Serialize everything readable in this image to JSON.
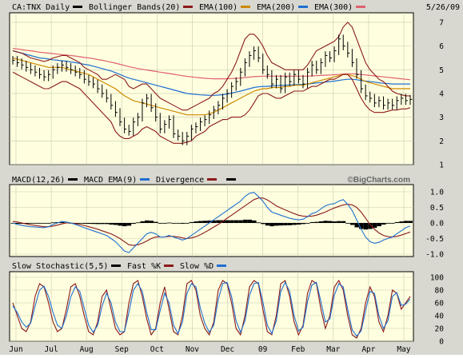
{
  "chart_data": {
    "type": "line",
    "date": "5/26/09",
    "watermark": "©BigCharts.com",
    "months": [
      "Jun",
      "Jul",
      "Aug",
      "Sep",
      "Oct",
      "Nov",
      "Dec",
      "09",
      "Feb",
      "Mar",
      "Apr",
      "May"
    ],
    "price_panel": {
      "legend": [
        {
          "label": "CA:TNX Daily",
          "color": "#000000"
        },
        {
          "label": "Bollinger Bands(20)",
          "color": "#8b1a1a"
        },
        {
          "label": "EMA(100)",
          "color": "#cc8800"
        },
        {
          "label": "EMA(200)",
          "color": "#1f6fd0"
        },
        {
          "label": "EMA(300)",
          "color": "#e06070"
        }
      ],
      "ylim": [
        1,
        7
      ],
      "yticks": [
        1,
        2,
        3,
        4,
        5,
        6,
        7
      ],
      "close": [
        5.4,
        5.3,
        5.2,
        5.1,
        5.0,
        4.9,
        4.8,
        4.7,
        4.8,
        5.0,
        5.1,
        5.2,
        5.1,
        5.0,
        4.9,
        4.8,
        4.6,
        4.5,
        4.4,
        4.2,
        4.0,
        3.8,
        3.5,
        3.2,
        2.8,
        2.5,
        2.4,
        2.8,
        3.0,
        3.6,
        3.8,
        3.4,
        3.0,
        2.5,
        2.7,
        2.9,
        2.3,
        2.2,
        2.0,
        2.2,
        2.5,
        2.6,
        2.8,
        2.9,
        3.1,
        3.3,
        3.5,
        3.8,
        4.0,
        4.3,
        4.5,
        4.9,
        5.3,
        5.6,
        5.8,
        5.5,
        5.0,
        4.8,
        4.4,
        4.6,
        4.2,
        4.7,
        4.5,
        4.8,
        4.6,
        4.4,
        4.9,
        5.2,
        5.0,
        5.3,
        5.6,
        5.5,
        5.8,
        6.3,
        6.0,
        5.7,
        5.3,
        4.8,
        4.2,
        3.9,
        3.8,
        3.6,
        3.7,
        3.5,
        3.6,
        3.5,
        3.7,
        3.8,
        3.7,
        3.75
      ],
      "bb_upper": [
        5.8,
        5.75,
        5.7,
        5.6,
        5.5,
        5.45,
        5.4,
        5.35,
        5.4,
        5.5,
        5.55,
        5.6,
        5.6,
        5.5,
        5.4,
        5.3,
        5.1,
        5.0,
        4.9,
        4.8,
        4.6,
        4.6,
        4.7,
        4.8,
        4.7,
        4.6,
        4.3,
        4.2,
        4.3,
        4.4,
        4.4,
        4.2,
        4.0,
        3.8,
        3.7,
        3.6,
        3.5,
        3.4,
        3.3,
        3.3,
        3.4,
        3.5,
        3.6,
        3.7,
        3.8,
        4.0,
        4.1,
        4.3,
        4.6,
        4.9,
        5.3,
        5.8,
        6.3,
        6.5,
        6.5,
        6.3,
        6.0,
        5.6,
        5.3,
        5.2,
        5.1,
        5.0,
        5.0,
        5.0,
        5.0,
        5.0,
        5.2,
        5.5,
        5.8,
        5.9,
        6.0,
        6.1,
        6.2,
        6.4,
        6.8,
        7.0,
        6.8,
        6.3,
        5.8,
        5.3,
        5.0,
        4.8,
        4.6,
        4.5,
        4.3,
        4.1,
        4.0,
        3.95,
        3.9,
        3.9
      ],
      "bb_lower": [
        4.9,
        4.8,
        4.7,
        4.6,
        4.5,
        4.4,
        4.3,
        4.2,
        4.2,
        4.3,
        4.4,
        4.5,
        4.5,
        4.4,
        4.3,
        4.2,
        4.0,
        3.8,
        3.6,
        3.4,
        3.2,
        3.0,
        2.8,
        2.4,
        2.2,
        2.1,
        2.1,
        2.2,
        2.3,
        2.5,
        2.6,
        2.5,
        2.4,
        2.2,
        2.1,
        2.0,
        1.9,
        1.9,
        1.9,
        1.95,
        2.0,
        2.2,
        2.3,
        2.4,
        2.6,
        2.7,
        2.8,
        2.9,
        2.9,
        3.0,
        3.0,
        3.0,
        3.1,
        3.3,
        3.6,
        3.9,
        4.0,
        4.0,
        3.9,
        3.8,
        3.8,
        3.9,
        4.0,
        4.1,
        4.1,
        4.1,
        4.2,
        4.3,
        4.3,
        4.4,
        4.5,
        4.6,
        4.6,
        4.7,
        4.8,
        4.8,
        4.6,
        4.2,
        3.8,
        3.5,
        3.3,
        3.2,
        3.2,
        3.2,
        3.25,
        3.3,
        3.3,
        3.35,
        3.35,
        3.4
      ],
      "ema100": [
        5.5,
        5.45,
        5.4,
        5.35,
        5.3,
        5.25,
        5.2,
        5.15,
        5.1,
        5.1,
        5.1,
        5.1,
        5.05,
        5.0,
        4.95,
        4.9,
        4.85,
        4.8,
        4.7,
        4.6,
        4.5,
        4.4,
        4.3,
        4.2,
        4.05,
        3.9,
        3.8,
        3.7,
        3.65,
        3.6,
        3.55,
        3.5,
        3.45,
        3.4,
        3.35,
        3.3,
        3.25,
        3.2,
        3.15,
        3.1,
        3.1,
        3.1,
        3.1,
        3.1,
        3.15,
        3.2,
        3.3,
        3.4,
        3.5,
        3.6,
        3.7,
        3.8,
        3.9,
        4.0,
        4.1,
        4.15,
        4.2,
        4.2,
        4.25,
        4.25,
        4.25,
        4.3,
        4.3,
        4.35,
        4.35,
        4.35,
        4.4,
        4.45,
        4.5,
        4.55,
        4.6,
        4.65,
        4.7,
        4.75,
        4.8,
        4.8,
        4.75,
        4.7,
        4.6,
        4.5,
        4.45,
        4.4,
        4.35,
        4.3,
        4.25,
        4.2,
        4.2,
        4.2,
        4.2,
        4.2
      ],
      "ema200": [
        5.8,
        5.75,
        5.7,
        5.65,
        5.6,
        5.55,
        5.5,
        5.48,
        5.45,
        5.42,
        5.4,
        5.38,
        5.36,
        5.33,
        5.3,
        5.27,
        5.23,
        5.2,
        5.15,
        5.1,
        5.05,
        5.0,
        4.95,
        4.88,
        4.8,
        4.72,
        4.65,
        4.6,
        4.55,
        4.5,
        4.45,
        4.4,
        4.35,
        4.3,
        4.25,
        4.2,
        4.15,
        4.1,
        4.05,
        4.0,
        3.98,
        3.96,
        3.94,
        3.93,
        3.92,
        3.92,
        3.93,
        3.95,
        3.98,
        4.02,
        4.06,
        4.1,
        4.15,
        4.2,
        4.25,
        4.28,
        4.3,
        4.3,
        4.32,
        4.33,
        4.34,
        4.35,
        4.36,
        4.37,
        4.38,
        4.38,
        4.4,
        4.42,
        4.44,
        4.46,
        4.48,
        4.5,
        4.52,
        4.55,
        4.58,
        4.6,
        4.6,
        4.58,
        4.55,
        4.52,
        4.5,
        4.48,
        4.45,
        4.43,
        4.42,
        4.4,
        4.4,
        4.4,
        4.4,
        4.4
      ],
      "ema300": [
        5.9,
        5.88,
        5.85,
        5.82,
        5.8,
        5.77,
        5.74,
        5.72,
        5.7,
        5.68,
        5.66,
        5.64,
        5.62,
        5.6,
        5.58,
        5.55,
        5.52,
        5.5,
        5.47,
        5.43,
        5.4,
        5.36,
        5.32,
        5.28,
        5.23,
        5.18,
        5.13,
        5.09,
        5.05,
        5.02,
        4.99,
        4.96,
        4.93,
        4.9,
        4.87,
        4.84,
        4.81,
        4.78,
        4.75,
        4.72,
        4.7,
        4.68,
        4.66,
        4.64,
        4.63,
        4.62,
        4.62,
        4.62,
        4.62,
        4.63,
        4.64,
        4.65,
        4.67,
        4.69,
        4.71,
        4.72,
        4.73,
        4.73,
        4.73,
        4.73,
        4.73,
        4.73,
        4.73,
        4.73,
        4.73,
        4.73,
        4.73,
        4.74,
        4.75,
        4.76,
        4.77,
        4.78,
        4.79,
        4.8,
        4.82,
        4.83,
        4.83,
        4.82,
        4.8,
        4.78,
        4.76,
        4.74,
        4.72,
        4.7,
        4.68,
        4.66,
        4.64,
        4.62,
        4.6,
        4.58
      ]
    },
    "macd_panel": {
      "legend": [
        {
          "label": "MACD(12,26)",
          "color": "#000000"
        },
        {
          "label": "MACD EMA(9)",
          "color": "#1f6fd0"
        },
        {
          "label": "Divergence",
          "color": "#8b1a1a"
        },
        {
          "label": "",
          "color": "#000000"
        }
      ],
      "ylim": [
        -1.0,
        1.0
      ],
      "yticks": [
        "1.0",
        "0.5",
        "0.0",
        "-0.5",
        "-1.0"
      ],
      "macd": [
        0.0,
        -0.05,
        -0.08,
        -0.1,
        -0.12,
        -0.13,
        -0.14,
        -0.15,
        -0.12,
        -0.05,
        0.0,
        0.05,
        0.03,
        0.0,
        -0.05,
        -0.1,
        -0.15,
        -0.2,
        -0.25,
        -0.3,
        -0.35,
        -0.4,
        -0.5,
        -0.6,
        -0.75,
        -0.9,
        -0.95,
        -0.8,
        -0.65,
        -0.5,
        -0.35,
        -0.3,
        -0.35,
        -0.45,
        -0.45,
        -0.4,
        -0.45,
        -0.5,
        -0.55,
        -0.5,
        -0.4,
        -0.3,
        -0.2,
        -0.1,
        0.0,
        0.1,
        0.2,
        0.3,
        0.4,
        0.5,
        0.6,
        0.7,
        0.85,
        0.95,
        0.98,
        0.85,
        0.7,
        0.5,
        0.35,
        0.3,
        0.25,
        0.2,
        0.15,
        0.12,
        0.1,
        0.12,
        0.2,
        0.3,
        0.35,
        0.45,
        0.55,
        0.6,
        0.62,
        0.7,
        0.75,
        0.6,
        0.4,
        0.1,
        -0.2,
        -0.45,
        -0.6,
        -0.65,
        -0.62,
        -0.55,
        -0.5,
        -0.45,
        -0.35,
        -0.25,
        -0.15,
        -0.1
      ],
      "signal": [
        0.05,
        0.03,
        0.0,
        -0.03,
        -0.06,
        -0.08,
        -0.1,
        -0.12,
        -0.12,
        -0.1,
        -0.07,
        -0.03,
        0.0,
        0.0,
        -0.02,
        -0.05,
        -0.08,
        -0.12,
        -0.16,
        -0.2,
        -0.25,
        -0.3,
        -0.35,
        -0.42,
        -0.5,
        -0.6,
        -0.7,
        -0.72,
        -0.7,
        -0.65,
        -0.58,
        -0.5,
        -0.45,
        -0.45,
        -0.45,
        -0.43,
        -0.43,
        -0.45,
        -0.48,
        -0.5,
        -0.48,
        -0.44,
        -0.38,
        -0.3,
        -0.22,
        -0.13,
        -0.05,
        0.05,
        0.15,
        0.25,
        0.35,
        0.45,
        0.55,
        0.65,
        0.75,
        0.8,
        0.8,
        0.74,
        0.65,
        0.55,
        0.48,
        0.42,
        0.36,
        0.3,
        0.25,
        0.22,
        0.21,
        0.22,
        0.25,
        0.3,
        0.35,
        0.42,
        0.48,
        0.53,
        0.58,
        0.6,
        0.58,
        0.5,
        0.35,
        0.15,
        -0.05,
        -0.2,
        -0.32,
        -0.4,
        -0.44,
        -0.45,
        -0.43,
        -0.39,
        -0.34,
        -0.29
      ]
    },
    "stoch_panel": {
      "legend": [
        {
          "label": "Slow Stochastic(5,5)",
          "color": "#000000"
        },
        {
          "label": "Fast %K",
          "color": "#8b1a1a"
        },
        {
          "label": "Slow %D",
          "color": "#1f6fd0"
        }
      ],
      "ylim": [
        0,
        100
      ],
      "yticks": [
        "100",
        "80",
        "60",
        "40",
        "20",
        "0"
      ],
      "fast_k": [
        60,
        40,
        20,
        15,
        30,
        70,
        90,
        85,
        60,
        30,
        15,
        20,
        50,
        85,
        90,
        70,
        40,
        15,
        10,
        30,
        70,
        80,
        50,
        20,
        10,
        15,
        60,
        90,
        95,
        70,
        35,
        10,
        20,
        60,
        85,
        50,
        15,
        10,
        40,
        90,
        95,
        80,
        40,
        20,
        10,
        30,
        80,
        95,
        90,
        60,
        20,
        10,
        40,
        85,
        95,
        90,
        50,
        15,
        10,
        40,
        90,
        95,
        70,
        30,
        10,
        25,
        75,
        95,
        90,
        50,
        20,
        40,
        85,
        95,
        80,
        40,
        10,
        5,
        20,
        60,
        85,
        70,
        30,
        15,
        40,
        80,
        75,
        50,
        60,
        70
      ],
      "slow_d": [
        55,
        45,
        30,
        22,
        28,
        55,
        80,
        86,
        70,
        45,
        25,
        20,
        40,
        70,
        85,
        78,
        52,
        25,
        14,
        25,
        55,
        75,
        60,
        30,
        15,
        15,
        45,
        80,
        90,
        78,
        45,
        18,
        18,
        48,
        75,
        60,
        25,
        12,
        30,
        75,
        90,
        85,
        52,
        28,
        14,
        25,
        65,
        90,
        92,
        70,
        32,
        14,
        32,
        72,
        90,
        92,
        62,
        25,
        12,
        32,
        78,
        92,
        78,
        40,
        16,
        22,
        62,
        88,
        92,
        62,
        30,
        35,
        72,
        90,
        85,
        50,
        18,
        8,
        16,
        48,
        78,
        75,
        40,
        20,
        32,
        70,
        76,
        56,
        58,
        66
      ]
    }
  }
}
